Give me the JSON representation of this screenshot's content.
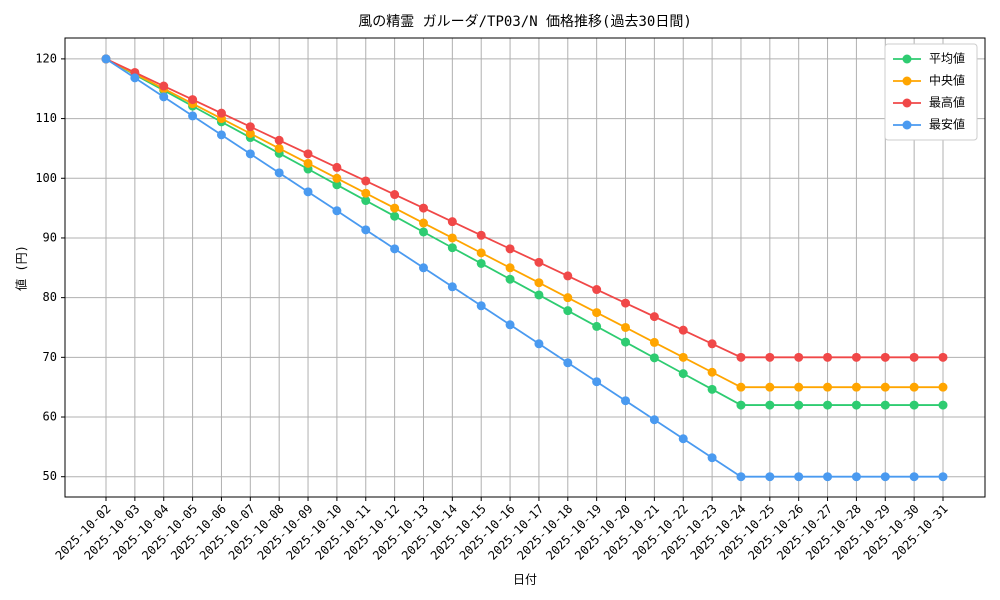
{
  "chart_data": {
    "type": "line",
    "title": "風の精霊 ガルーダ/TP03/N 価格推移(過去30日間)",
    "x_label": "日付",
    "y_label": "値 (円)",
    "categories": [
      "2025-10-02",
      "2025-10-03",
      "2025-10-04",
      "2025-10-05",
      "2025-10-06",
      "2025-10-07",
      "2025-10-08",
      "2025-10-09",
      "2025-10-10",
      "2025-10-11",
      "2025-10-12",
      "2025-10-13",
      "2025-10-14",
      "2025-10-15",
      "2025-10-16",
      "2025-10-17",
      "2025-10-18",
      "2025-10-19",
      "2025-10-20",
      "2025-10-21",
      "2025-10-22",
      "2025-10-23",
      "2025-10-24",
      "2025-10-25",
      "2025-10-26",
      "2025-10-27",
      "2025-10-28",
      "2025-10-29",
      "2025-10-30",
      "2025-10-31"
    ],
    "series": [
      {
        "name": "平均値",
        "color": "#2ecc71",
        "values": [
          120,
          117.36,
          114.73,
          112.09,
          109.45,
          106.82,
          104.18,
          101.55,
          98.91,
          96.27,
          93.64,
          91.0,
          88.36,
          85.73,
          83.09,
          80.45,
          77.82,
          75.18,
          72.55,
          69.91,
          67.27,
          64.64,
          62,
          62,
          62,
          62,
          62,
          62,
          62,
          62
        ]
      },
      {
        "name": "中央値",
        "color": "#ffa500",
        "values": [
          120,
          117.5,
          115,
          112.5,
          110,
          107.5,
          105,
          102.5,
          100,
          97.5,
          95,
          92.5,
          90,
          87.5,
          85,
          82.5,
          80,
          77.5,
          75,
          72.5,
          70,
          67.5,
          65,
          65,
          65,
          65,
          65,
          65,
          65,
          65
        ]
      },
      {
        "name": "最高値",
        "color": "#f04848",
        "values": [
          120,
          117.73,
          115.45,
          113.18,
          110.91,
          108.64,
          106.36,
          104.09,
          101.82,
          99.55,
          97.27,
          95.0,
          92.73,
          90.45,
          88.18,
          85.91,
          83.64,
          81.36,
          79.09,
          76.82,
          74.55,
          72.27,
          70,
          70,
          70,
          70,
          70,
          70,
          70,
          70
        ]
      },
      {
        "name": "最安値",
        "color": "#4a9af0",
        "values": [
          120,
          116.82,
          113.64,
          110.45,
          107.27,
          104.09,
          100.91,
          97.73,
          94.55,
          91.36,
          88.18,
          85,
          81.82,
          78.64,
          75.45,
          72.27,
          69.09,
          65.91,
          62.73,
          59.55,
          56.36,
          53.18,
          50,
          50,
          50,
          50,
          50,
          50,
          50,
          50
        ]
      }
    ],
    "ylim": [
      46.6,
      123.5
    ],
    "yticks": [
      50,
      60,
      70,
      80,
      90,
      100,
      110,
      120
    ],
    "grid": true,
    "legend": "upper right"
  }
}
